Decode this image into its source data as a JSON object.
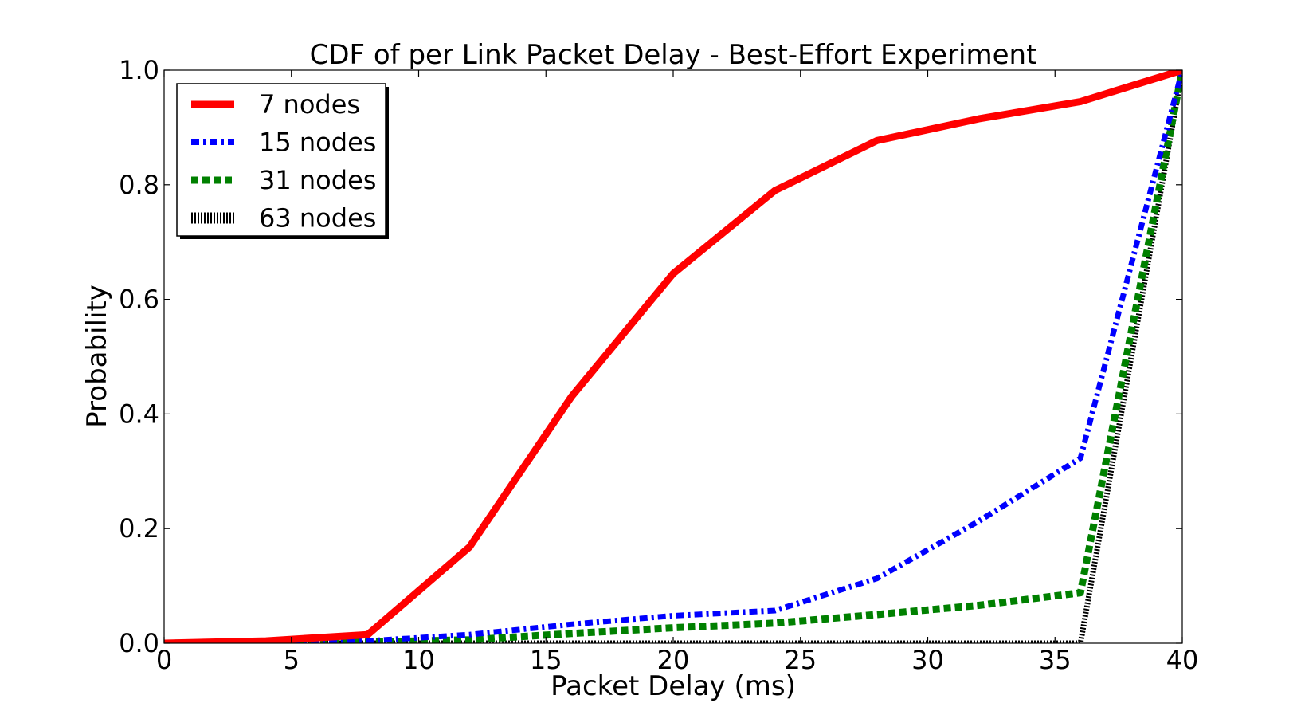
{
  "chart_data": {
    "type": "line",
    "title": "CDF of per Link Packet Delay - Best-Effort Experiment",
    "xlabel": "Packet Delay (ms)",
    "ylabel": "Probability",
    "xlim": [
      0,
      40
    ],
    "ylim": [
      0.0,
      1.0
    ],
    "xticks": [
      0,
      5,
      10,
      15,
      20,
      25,
      30,
      35,
      40
    ],
    "xtick_labels": [
      "0",
      "5",
      "10",
      "15",
      "20",
      "25",
      "30",
      "35",
      "40"
    ],
    "yticks": [
      0.0,
      0.2,
      0.4,
      0.6,
      0.8,
      1.0
    ],
    "ytick_labels": [
      "0.0",
      "0.2",
      "0.4",
      "0.6",
      "0.8",
      "1.0"
    ],
    "grid": false,
    "legend_position": "top-left",
    "series": [
      {
        "name": "7 nodes",
        "color": "#ff0000",
        "style": "solid",
        "x": [
          0,
          4,
          8,
          12,
          16,
          20,
          24,
          28,
          32,
          36,
          40
        ],
        "y": [
          0.0,
          0.004,
          0.015,
          0.168,
          0.43,
          0.645,
          0.79,
          0.877,
          0.915,
          0.945,
          1.0
        ]
      },
      {
        "name": "15 nodes",
        "color": "#0000ff",
        "style": "dashdot",
        "x": [
          0,
          4,
          8,
          12,
          16,
          20,
          24,
          28,
          32,
          36,
          40
        ],
        "y": [
          0.0,
          0.001,
          0.004,
          0.015,
          0.033,
          0.048,
          0.057,
          0.113,
          0.213,
          0.323,
          1.0
        ]
      },
      {
        "name": "31 nodes",
        "color": "#008000",
        "style": "dotted",
        "x": [
          0,
          4,
          8,
          12,
          16,
          20,
          24,
          28,
          32,
          36,
          40
        ],
        "y": [
          0.0,
          0.001,
          0.002,
          0.006,
          0.017,
          0.027,
          0.035,
          0.05,
          0.066,
          0.088,
          1.0
        ]
      },
      {
        "name": "63 nodes",
        "color": "#000000",
        "style": "vline",
        "x": [
          0,
          4,
          8,
          12,
          16,
          20,
          24,
          28,
          32,
          36,
          40
        ],
        "y": [
          0.0,
          0.0,
          0.0,
          0.0,
          0.0,
          0.0,
          0.0,
          0.0,
          0.0,
          0.0,
          1.0
        ]
      }
    ]
  }
}
